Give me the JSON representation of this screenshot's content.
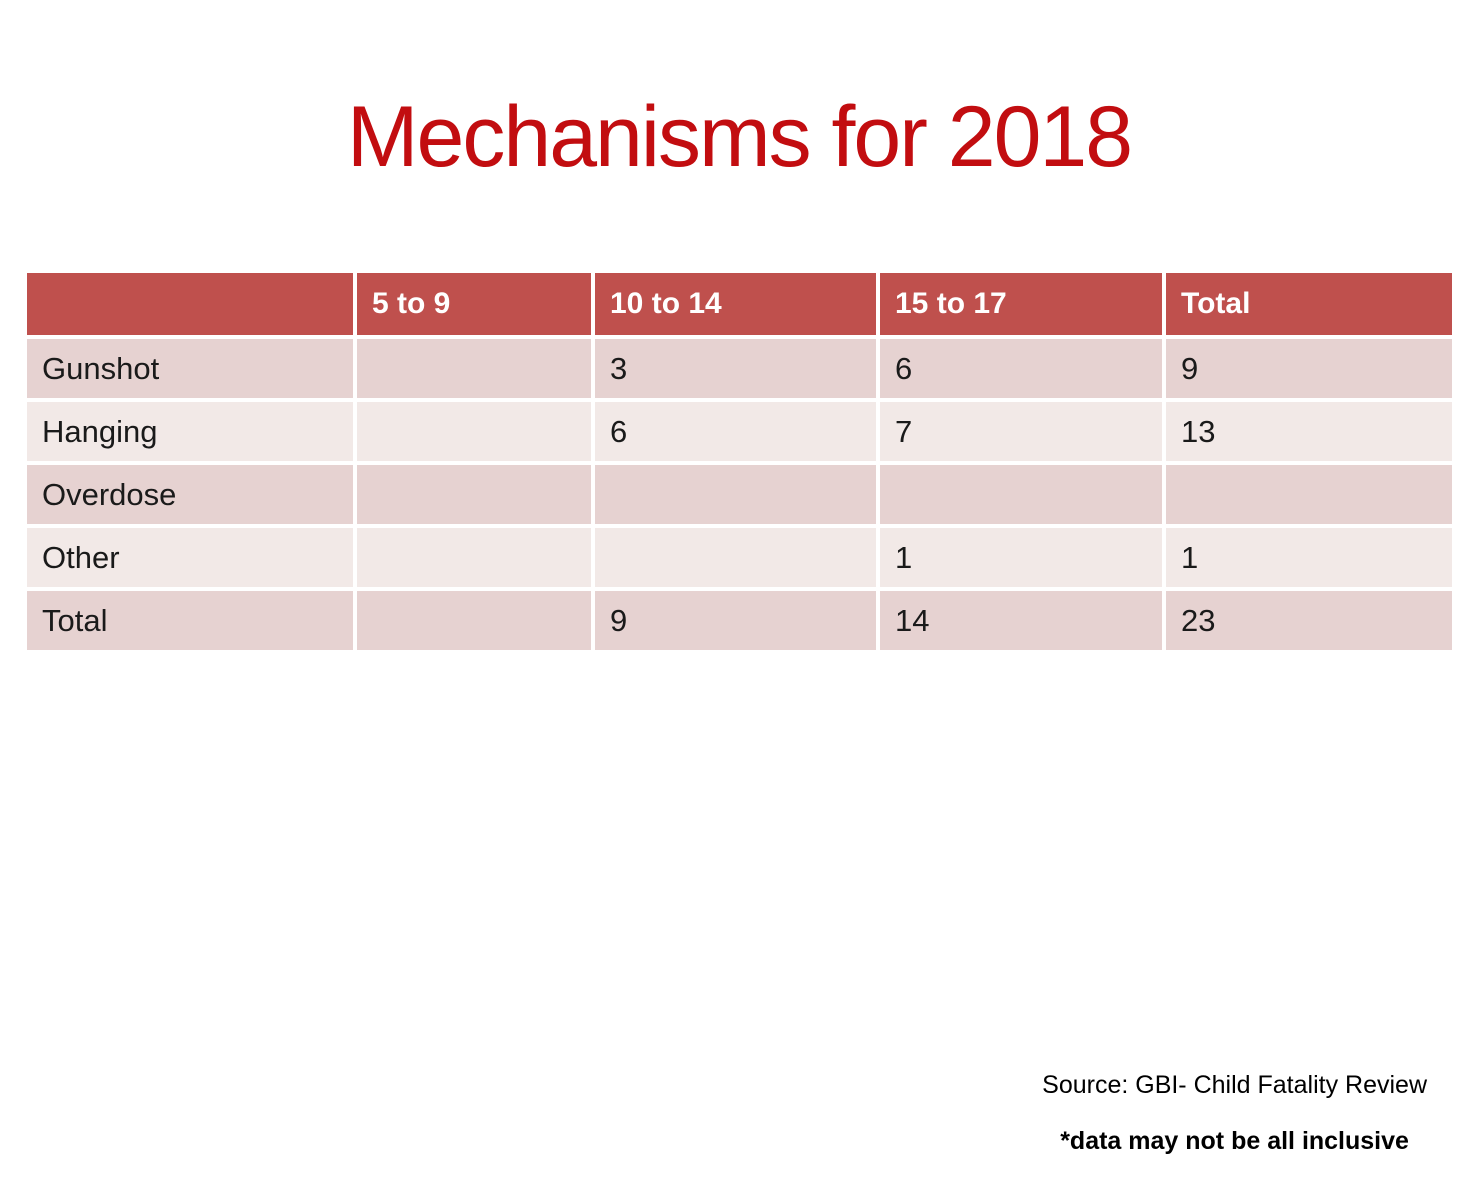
{
  "title": {
    "text": "Mechanisms for 2018"
  },
  "colors": {
    "title_red": "#C20D10",
    "header_red": "#BF504D",
    "band_dark": "#E6D2D1",
    "band_light": "#F2E9E7",
    "header_text": "#FFFFFF",
    "body_text": "#1A1A1A"
  },
  "table": {
    "columns": [
      "",
      "5 to 9",
      "10 to 14",
      "15 to 17",
      "Total"
    ],
    "rows": [
      {
        "label": "Gunshot",
        "values": [
          "",
          "3",
          "6",
          "9"
        ]
      },
      {
        "label": "Hanging",
        "values": [
          "",
          "6",
          "7",
          "13"
        ]
      },
      {
        "label": "Overdose",
        "values": [
          "",
          "",
          "",
          ""
        ]
      },
      {
        "label": "Other",
        "values": [
          "",
          "",
          "1",
          "1"
        ]
      },
      {
        "label": "Total",
        "values": [
          "",
          "9",
          "14",
          "23"
        ]
      }
    ]
  },
  "footer": {
    "source": "Source: GBI- Child Fatality Review",
    "note": "*data may not be all inclusive"
  }
}
